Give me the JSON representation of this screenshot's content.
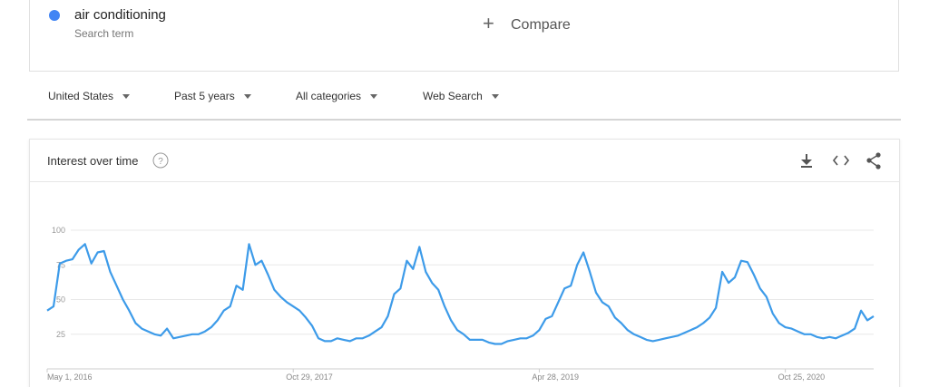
{
  "search": {
    "label": "Search term",
    "compare": "Compare"
  },
  "filters": [
    "United States",
    "Past 5 years",
    "All categories",
    "Web Search"
  ],
  "panel": {
    "title": "Interest over time"
  },
  "chart_data": {
    "type": "line",
    "categories": [
      "May 1, 2016",
      null,
      null,
      null,
      null,
      null,
      null,
      null,
      null,
      null,
      null,
      null,
      null,
      null,
      null,
      null,
      null,
      null,
      null,
      null,
      null,
      null,
      null,
      null,
      null,
      null,
      null,
      null,
      null,
      null,
      null,
      null,
      null,
      null,
      null,
      null,
      null,
      null,
      null,
      "Oct 29, 2017",
      null,
      null,
      null,
      null,
      null,
      null,
      null,
      null,
      null,
      null,
      null,
      null,
      null,
      null,
      null,
      null,
      null,
      null,
      null,
      null,
      null,
      null,
      null,
      null,
      null,
      null,
      null,
      null,
      null,
      null,
      null,
      null,
      null,
      null,
      null,
      null,
      null,
      null,
      "Apr 28, 2019",
      null,
      null,
      null,
      null,
      null,
      null,
      null,
      null,
      null,
      null,
      null,
      null,
      null,
      null,
      null,
      null,
      null,
      null,
      null,
      null,
      null,
      null,
      null,
      null,
      null,
      null,
      null,
      null,
      null,
      null,
      null,
      null,
      null,
      null,
      null,
      null,
      null,
      null,
      "Oct 25, 2020",
      null,
      null,
      null,
      null,
      null,
      null,
      null,
      null,
      null,
      null,
      null,
      null,
      null,
      null
    ],
    "series": [
      {
        "name": "air conditioning",
        "color": "#3d9be9",
        "values": [
          42,
          45,
          76,
          78,
          79,
          86,
          90,
          76,
          84,
          85,
          70,
          60,
          50,
          42,
          33,
          29,
          27,
          25,
          24,
          29,
          22,
          23,
          24,
          25,
          25,
          27,
          30,
          35,
          42,
          45,
          60,
          57,
          90,
          75,
          78,
          68,
          57,
          52,
          48,
          45,
          42,
          37,
          31,
          22,
          20,
          20,
          22,
          21,
          20,
          22,
          22,
          24,
          27,
          30,
          38,
          54,
          58,
          78,
          72,
          88,
          70,
          62,
          57,
          45,
          35,
          28,
          25,
          21,
          21,
          21,
          19,
          18,
          18,
          20,
          21,
          22,
          22,
          24,
          28,
          36,
          38,
          48,
          58,
          60,
          75,
          84,
          70,
          55,
          48,
          45,
          37,
          33,
          28,
          25,
          23,
          21,
          20,
          21,
          22,
          23,
          24,
          26,
          28,
          30,
          33,
          37,
          44,
          70,
          62,
          66,
          78,
          77,
          68,
          58,
          52,
          40,
          33,
          30,
          29,
          27,
          25,
          25,
          23,
          22,
          23,
          22,
          24,
          26,
          29,
          42,
          35,
          38
        ]
      }
    ],
    "ylim": [
      0,
      100
    ],
    "yticks": [
      25,
      50,
      75,
      100
    ],
    "grid": true
  }
}
